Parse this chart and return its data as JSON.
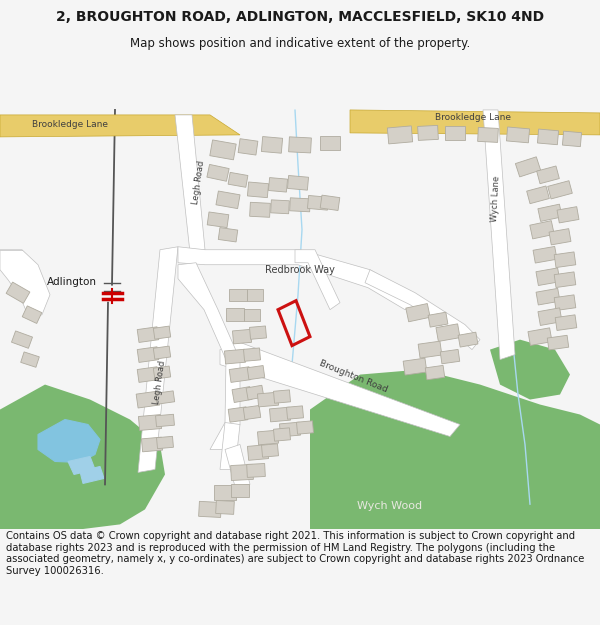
{
  "title": "2, BROUGHTON ROAD, ADLINGTON, MACCLESFIELD, SK10 4ND",
  "subtitle": "Map shows position and indicative extent of the property.",
  "footer": "Contains OS data © Crown copyright and database right 2021. This information is subject to Crown copyright and database rights 2023 and is reproduced with the permission of HM Land Registry. The polygons (including the associated geometry, namely x, y co-ordinates) are subject to Crown copyright and database rights 2023 Ordnance Survey 100026316.",
  "bg_color": "#f5f5f5",
  "map_bg": "#f0eeea",
  "yellow_road": "#e8cc6a",
  "yellow_road_edge": "#c8a830",
  "white_road": "#ffffff",
  "road_edge": "#c0c0c0",
  "building_color": "#d4d0c8",
  "building_edge": "#b0aca0",
  "green_color": "#7ab870",
  "water_color": "#82c4e0",
  "water2_color": "#a0d0e8",
  "highlight_color": "#cc1111",
  "text_color": "#1a1a1a",
  "road_text": "#404040",
  "title_fs": 10,
  "subtitle_fs": 8.5,
  "footer_fs": 7.2
}
